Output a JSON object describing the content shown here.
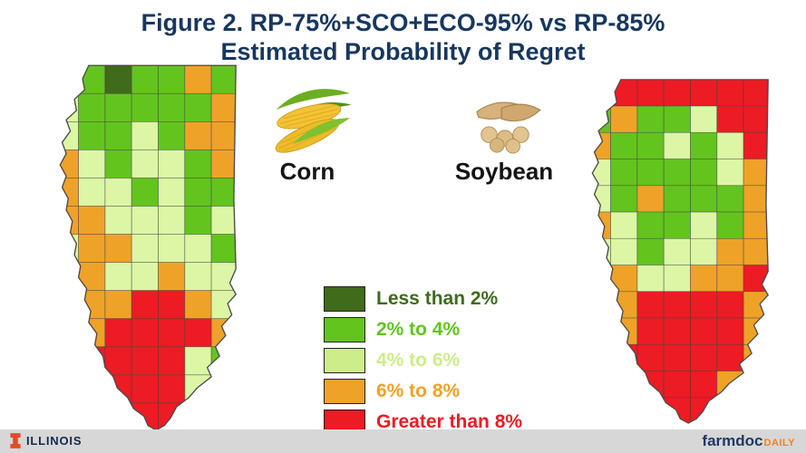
{
  "title": {
    "line1": "Figure 2. RP-75%+SCO+ECO-95% vs RP-85%",
    "line2": "Estimated Probability of Regret"
  },
  "palette": {
    "D": "#3f6b1b",
    "G": "#63c41e",
    "L": "#dcf6a5",
    "O": "#efa228",
    "R": "#ed1b24"
  },
  "maps": {
    "corn": {
      "label": "Corn",
      "grid": [
        "GGDGGOG",
        "LGGGGGO",
        "LGGLGOO",
        "OLGLLGO",
        "OLLGLGG",
        "OOLLLGL",
        "LOOLLLG",
        "OOLLOLL",
        "OOORROL",
        "LORRRRO",
        "ORRRRLG",
        "OORRRLO",
        "OOGRROO"
      ]
    },
    "soybean": {
      "label": "Soybean",
      "grid": [
        "RRRRRRR",
        "GOGGLRR",
        "OGGLGLR",
        "LGGGGLO",
        "LGOGGGO",
        "OLGGLGO",
        "LLGLLOO",
        "OOLLOOR",
        "OORRRRO",
        "LORRRRO",
        "ORRRRRO",
        "OORRROO",
        "OOLRROO"
      ]
    }
  },
  "legend": {
    "items": [
      {
        "label": "Less than 2%",
        "color": "#3f6b1b"
      },
      {
        "label": "2% to 4%",
        "color": "#63c41e"
      },
      {
        "label": "4% to 6%",
        "color": "#cdec8a"
      },
      {
        "label": "6% to 8%",
        "color": "#efa228"
      },
      {
        "label": "Greater than 8%",
        "color": "#ed1b24"
      }
    ]
  },
  "footer": {
    "university": "ILLINOIS",
    "brand": "farmdoc",
    "brand_suffix": "DAILY"
  },
  "colors": {
    "title": "#17375e",
    "illinois_orange": "#e84a27",
    "illinois_blue": "#13294b",
    "farmdoc_blue": "#1f3864",
    "farmdoc_orange": "#f08122",
    "footer_band": "#d7d7d7"
  }
}
